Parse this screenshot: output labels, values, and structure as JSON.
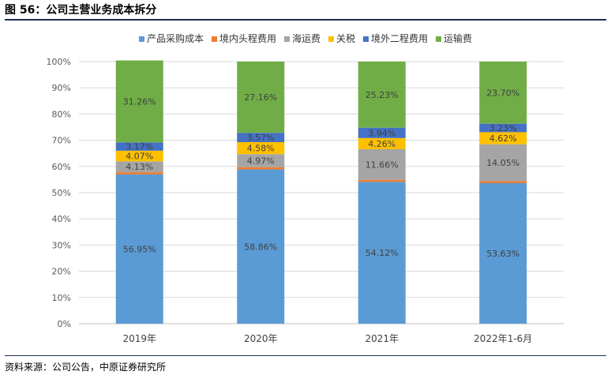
{
  "header": {
    "title": "图 56：公司主营业务成本拆分"
  },
  "footer": {
    "source": "资料来源：公司公告，中原证券研究所"
  },
  "colors": {
    "产品采购成本": "#5b9bd5",
    "境内头程费用": "#ed7d31",
    "海运费": "#a5a5a5",
    "关税": "#ffc000",
    "境外二程费用": "#4472c4",
    "运输费": "#70ad47"
  },
  "chart_data": {
    "type": "bar",
    "stacked": true,
    "percent": true,
    "categories": [
      "2019年",
      "2020年",
      "2021年",
      "2022年1-6月"
    ],
    "ylim": [
      0,
      100
    ],
    "yticks": [
      "0%",
      "10%",
      "20%",
      "30%",
      "40%",
      "50%",
      "60%",
      "70%",
      "80%",
      "90%",
      "100%"
    ],
    "legend_position": "top",
    "series": [
      {
        "name": "产品采购成本",
        "values": [
          56.95,
          58.86,
          54.12,
          53.63
        ],
        "labels": [
          "56.95%",
          "58.86%",
          "54.12%",
          "53.63%"
        ]
      },
      {
        "name": "境内头程费用",
        "values": [
          0.85,
          0.86,
          0.79,
          0.77
        ],
        "labels": [
          "",
          "",
          "",
          ""
        ]
      },
      {
        "name": "海运费",
        "values": [
          4.13,
          4.97,
          11.66,
          14.05
        ],
        "labels": [
          "4.13%",
          "4.97%",
          "11.66%",
          "14.05%"
        ]
      },
      {
        "name": "关税",
        "values": [
          4.07,
          4.58,
          4.26,
          4.62
        ],
        "labels": [
          "4.07%",
          "4.58%",
          "4.26%",
          "4.62%"
        ]
      },
      {
        "name": "境外二程费用",
        "values": [
          3.17,
          3.57,
          3.94,
          3.23
        ],
        "labels": [
          "3.17%",
          "3.57%",
          "3.94%",
          "3.23%"
        ]
      },
      {
        "name": "运输费",
        "values": [
          31.26,
          27.16,
          25.23,
          23.7
        ],
        "labels": [
          "31.26%",
          "27.16%",
          "25.23%",
          "23.70%"
        ]
      }
    ]
  }
}
